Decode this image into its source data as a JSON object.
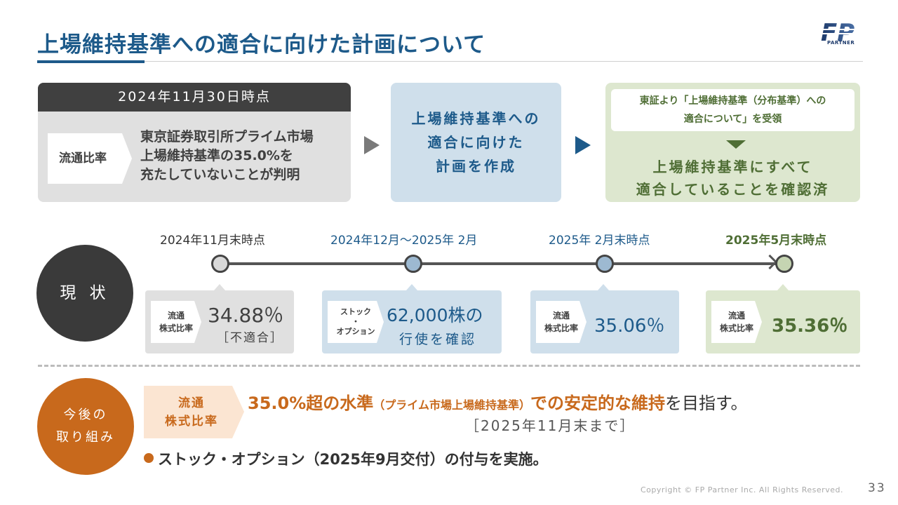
{
  "header": {
    "title": "上場維持基準への適合に向けた計画について",
    "logo_text": "FP",
    "logo_sub": "PARTNER"
  },
  "flow": {
    "box1": {
      "header": "2024年11月30日時点",
      "tag": "流通比率",
      "lines": [
        "東京証券取引所プライム市場",
        "上場維持基準の35.0%を",
        "充たしていないことが判明"
      ]
    },
    "box2": {
      "lines": [
        "上場維持基準への",
        "適合に向けた",
        "計画を作成"
      ]
    },
    "box3": {
      "note_lines": [
        "東証より「上場維持基準（分布基準）への",
        "適合について」を受領"
      ],
      "lines": [
        "上場維持基準にすべて",
        "適合していることを確認済"
      ]
    }
  },
  "current": {
    "label": "現 状",
    "timeline": [
      {
        "date": "2024年11月末時点",
        "tag": [
          "流通",
          "株式比率"
        ],
        "value": "34.88％",
        "sub": "［不適合］",
        "status": "gray"
      },
      {
        "date": "2024年12月～2025年 2月",
        "tag": [
          "ストック",
          "・",
          "オプション"
        ],
        "value": "62,000株の",
        "sub": "行使を確認",
        "status": "blue"
      },
      {
        "date": "2025年 2月末時点",
        "tag": [
          "流通",
          "株式比率"
        ],
        "value": "35.06％",
        "status": "blue"
      },
      {
        "date": "2025年5月末時点",
        "tag": [
          "流通",
          "株式比率"
        ],
        "value": "35.36％",
        "status": "green"
      }
    ]
  },
  "future": {
    "label_lines": [
      "今後の",
      "取り組み"
    ],
    "tag_lines": [
      "流通",
      "株式比率"
    ],
    "main_part1": "35.0%超の水準",
    "main_part2": "（プライム市場上場維持基準）",
    "main_part3": "での安定的な維持",
    "main_part4": "を目指す。",
    "sub": "［2025年11月末まで］",
    "bullet": "ストック・オプション（2025年9月交付）の付与を実施。"
  },
  "footer": {
    "copyright": "Copyright © FP Partner Inc. All Rights Reserved.",
    "page": "33"
  },
  "colors": {
    "navy": "#1d5a8a",
    "green": "#4f6e35",
    "orange": "#c8691c",
    "dark": "#404040"
  }
}
